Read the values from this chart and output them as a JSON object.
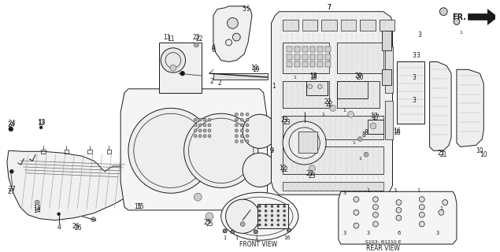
{
  "background_color": "#ffffff",
  "fig_width": 6.35,
  "fig_height": 3.2,
  "dpi": 100,
  "dark": "#1a1a1a",
  "gray": "#888888",
  "light_gray": "#dddddd",
  "labels": {
    "front_view": "FRONT VIEW",
    "rear_view": "REAR VIEW",
    "diagram_code": "S103- B1210 E",
    "fr_label": "FR."
  }
}
